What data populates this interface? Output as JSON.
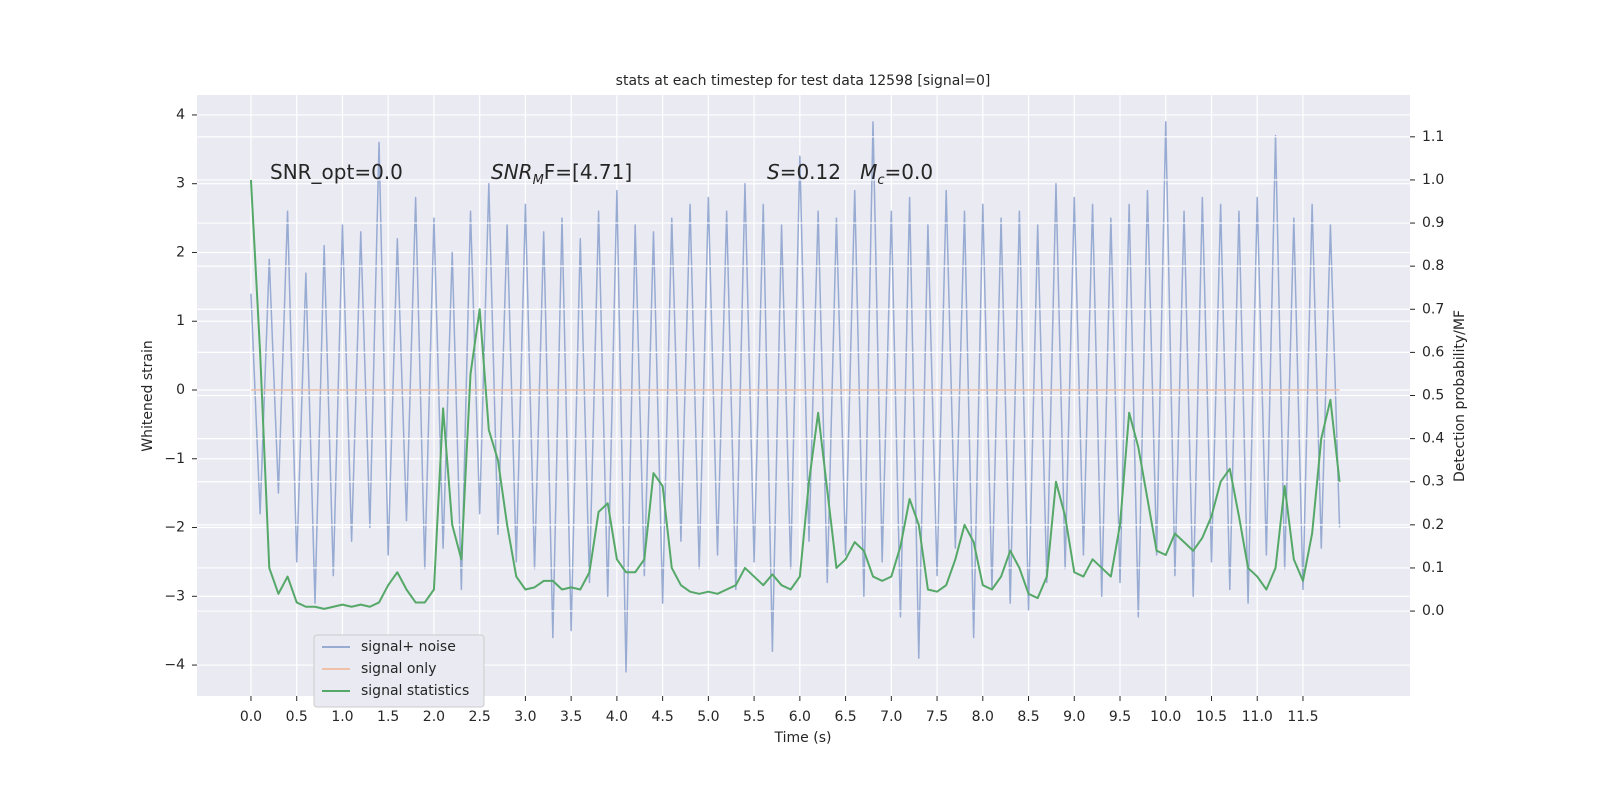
{
  "chart_data": {
    "type": "line",
    "title": "stats at each timestep for test data 12598 [signal=0]",
    "xlabel": "Time (s)",
    "ylabel": "Whitened strain",
    "y2label": "Detection probability/MF",
    "annotations": [
      [
        "SNR_opt=0.0"
      ],
      [
        "SNR",
        "M",
        "F=[4.71]"
      ],
      [
        "S",
        "=0.12   ",
        "M",
        "c",
        "=0.0"
      ]
    ],
    "grid": true,
    "legend": "lower left",
    "xlim": [
      -0.59,
      12.67
    ],
    "ylim": [
      -4.45,
      4.29
    ],
    "y2lim": [
      -0.197,
      1.197
    ],
    "xticks": [
      {
        "value": 0,
        "label": "0.0"
      },
      {
        "value": 0.5,
        "label": "0.5"
      },
      {
        "value": 1,
        "label": "1.0"
      },
      {
        "value": 1.5,
        "label": "1.5"
      },
      {
        "value": 2,
        "label": "2.0"
      },
      {
        "value": 2.5,
        "label": "2.5"
      },
      {
        "value": 3,
        "label": "3.0"
      },
      {
        "value": 3.5,
        "label": "3.5"
      },
      {
        "value": 4,
        "label": "4.0"
      },
      {
        "value": 4.5,
        "label": "4.5"
      },
      {
        "value": 5,
        "label": "5.0"
      },
      {
        "value": 5.5,
        "label": "5.5"
      },
      {
        "value": 6,
        "label": "6.0"
      },
      {
        "value": 6.5,
        "label": "6.5"
      },
      {
        "value": 7,
        "label": "7.0"
      },
      {
        "value": 7.5,
        "label": "7.5"
      },
      {
        "value": 8,
        "label": "8.0"
      },
      {
        "value": 8.5,
        "label": "8.5"
      },
      {
        "value": 9,
        "label": "9.0"
      },
      {
        "value": 9.5,
        "label": "9.5"
      },
      {
        "value": 10,
        "label": "10.0"
      },
      {
        "value": 10.5,
        "label": "10.5"
      },
      {
        "value": 11,
        "label": "11.0"
      },
      {
        "value": 11.5,
        "label": "11.5"
      }
    ],
    "yticks": [
      {
        "value": -4,
        "label": "−4"
      },
      {
        "value": -3,
        "label": "−3"
      },
      {
        "value": -2,
        "label": "−2"
      },
      {
        "value": -1,
        "label": "−1"
      },
      0,
      1,
      2,
      3,
      4
    ],
    "y2ticks": [
      {
        "value": 0,
        "label": "0.0"
      },
      {
        "value": 0.1,
        "label": "0.1"
      },
      {
        "value": 0.2,
        "label": "0.2"
      },
      {
        "value": 0.3,
        "label": "0.3"
      },
      {
        "value": 0.4,
        "label": "0.4"
      },
      {
        "value": 0.5,
        "label": "0.5"
      },
      {
        "value": 0.6,
        "label": "0.6"
      },
      {
        "value": 0.7,
        "label": "0.7"
      },
      {
        "value": 0.8,
        "label": "0.8"
      },
      {
        "value": 0.9,
        "label": "0.9"
      },
      {
        "value": 1,
        "label": "1.0"
      },
      {
        "value": 1.1,
        "label": "1.1"
      }
    ],
    "x": [
      0,
      0.1,
      0.2,
      0.3,
      0.4,
      0.5,
      0.6,
      0.7,
      0.8,
      0.9,
      1,
      1.1,
      1.2,
      1.3,
      1.4,
      1.5,
      1.6,
      1.7,
      1.8,
      1.9,
      2,
      2.1,
      2.2,
      2.3,
      2.4,
      2.5,
      2.6,
      2.7,
      2.8,
      2.9,
      3,
      3.1,
      3.2,
      3.3,
      3.4,
      3.5,
      3.6,
      3.7,
      3.8,
      3.9,
      4,
      4.1,
      4.2,
      4.3,
      4.4,
      4.5,
      4.6,
      4.7,
      4.8,
      4.9,
      5,
      5.1,
      5.2,
      5.3,
      5.4,
      5.5,
      5.6,
      5.7,
      5.8,
      5.9,
      6,
      6.1,
      6.2,
      6.3,
      6.4,
      6.5,
      6.6,
      6.7,
      6.8,
      6.9,
      7,
      7.1,
      7.2,
      7.3,
      7.4,
      7.5,
      7.6,
      7.7,
      7.8,
      7.9,
      8,
      8.1,
      8.2,
      8.3,
      8.4,
      8.5,
      8.6,
      8.7,
      8.8,
      8.9,
      9,
      9.1,
      9.2,
      9.3,
      9.4,
      9.5,
      9.6,
      9.7,
      9.8,
      9.9,
      10,
      10.1,
      10.2,
      10.3,
      10.4,
      10.5,
      10.6,
      10.7,
      10.8,
      10.9,
      11,
      11.1,
      11.2,
      11.3,
      11.4,
      11.5,
      11.6,
      11.7,
      11.8,
      11.9
    ],
    "series": [
      {
        "name": "signal+ noise",
        "color": "#98abd2",
        "values": [
          1.4,
          -1.8,
          1.9,
          -1.5,
          2.6,
          -2.5,
          1.7,
          -3.1,
          2.1,
          -2.7,
          2.4,
          -2.2,
          2.3,
          -2.0,
          3.6,
          -2.4,
          2.2,
          -1.9,
          2.8,
          -2.6,
          2.5,
          -2.3,
          2.0,
          -2.9,
          2.6,
          -1.8,
          3.0,
          -2.1,
          2.4,
          -2.5,
          2.7,
          -2.6,
          2.3,
          -3.6,
          2.5,
          -3.5,
          2.2,
          -2.8,
          2.6,
          -3.0,
          2.9,
          -4.1,
          2.4,
          -2.7,
          2.3,
          -3.1,
          2.5,
          -2.2,
          2.7,
          -2.6,
          2.8,
          -2.4,
          2.6,
          -2.9,
          3.0,
          -2.5,
          2.7,
          -3.8,
          2.4,
          -2.6,
          3.4,
          -2.2,
          2.6,
          -2.8,
          2.5,
          -2.4,
          2.9,
          -3.0,
          3.9,
          -2.5,
          2.6,
          -3.3,
          2.8,
          -3.9,
          2.4,
          -2.7,
          2.9,
          -2.3,
          2.6,
          -3.6,
          2.7,
          -2.9,
          2.5,
          -3.1,
          2.6,
          -3.2,
          2.4,
          -2.8,
          3.0,
          -2.6,
          2.8,
          -2.4,
          2.7,
          -3.0,
          2.5,
          -2.8,
          2.7,
          -3.3,
          2.9,
          -2.4,
          3.9,
          -2.7,
          2.6,
          -3.0,
          2.8,
          -2.5,
          2.7,
          -2.9,
          2.6,
          -3.1,
          2.8,
          -2.4,
          3.7,
          -2.6,
          2.5,
          -2.9,
          2.7,
          -2.3,
          2.4,
          -2.0
        ]
      },
      {
        "name": "signal only",
        "color": "#eec1a8",
        "values": [
          0,
          0,
          0,
          0,
          0,
          0,
          0,
          0,
          0,
          0,
          0,
          0,
          0,
          0,
          0,
          0,
          0,
          0,
          0,
          0,
          0,
          0,
          0,
          0,
          0,
          0,
          0,
          0,
          0,
          0,
          0,
          0,
          0,
          0,
          0,
          0,
          0,
          0,
          0,
          0,
          0,
          0,
          0,
          0,
          0,
          0,
          0,
          0,
          0,
          0,
          0,
          0,
          0,
          0,
          0,
          0,
          0,
          0,
          0,
          0,
          0,
          0,
          0,
          0,
          0,
          0,
          0,
          0,
          0,
          0,
          0,
          0,
          0,
          0,
          0,
          0,
          0,
          0,
          0,
          0,
          0,
          0,
          0,
          0,
          0,
          0,
          0,
          0,
          0,
          0,
          0,
          0,
          0,
          0,
          0,
          0,
          0,
          0,
          0,
          0,
          0,
          0,
          0,
          0,
          0,
          0,
          0,
          0,
          0,
          0,
          0,
          0,
          0,
          0,
          0,
          0,
          0,
          0,
          0,
          0
        ]
      },
      {
        "name": "signal statistics",
        "color": "#55a868",
        "axis": "y2",
        "values": [
          1.0,
          0.6,
          0.1,
          0.04,
          0.08,
          0.02,
          0.01,
          0.01,
          0.005,
          0.01,
          0.015,
          0.01,
          0.015,
          0.01,
          0.02,
          0.06,
          0.09,
          0.05,
          0.02,
          0.02,
          0.05,
          0.47,
          0.2,
          0.12,
          0.55,
          0.7,
          0.42,
          0.35,
          0.2,
          0.08,
          0.05,
          0.055,
          0.07,
          0.07,
          0.05,
          0.055,
          0.05,
          0.09,
          0.23,
          0.25,
          0.12,
          0.09,
          0.09,
          0.12,
          0.32,
          0.29,
          0.1,
          0.06,
          0.045,
          0.04,
          0.045,
          0.04,
          0.05,
          0.06,
          0.1,
          0.08,
          0.06,
          0.085,
          0.06,
          0.05,
          0.08,
          0.3,
          0.46,
          0.28,
          0.1,
          0.12,
          0.16,
          0.14,
          0.08,
          0.07,
          0.08,
          0.15,
          0.26,
          0.2,
          0.05,
          0.045,
          0.06,
          0.12,
          0.2,
          0.16,
          0.06,
          0.05,
          0.08,
          0.14,
          0.1,
          0.04,
          0.03,
          0.08,
          0.3,
          0.22,
          0.09,
          0.08,
          0.12,
          0.1,
          0.08,
          0.2,
          0.46,
          0.38,
          0.26,
          0.14,
          0.13,
          0.18,
          0.16,
          0.14,
          0.17,
          0.22,
          0.3,
          0.33,
          0.22,
          0.1,
          0.08,
          0.05,
          0.1,
          0.29,
          0.12,
          0.07,
          0.18,
          0.4,
          0.49,
          0.3
        ]
      }
    ]
  }
}
